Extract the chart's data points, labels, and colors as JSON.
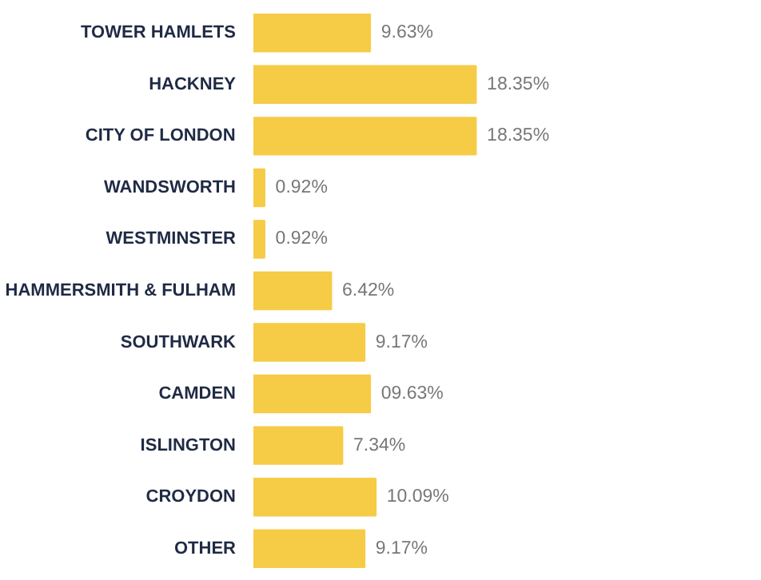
{
  "chart_data": {
    "type": "bar",
    "orientation": "horizontal",
    "categories": [
      "TOWER HAMLETS",
      "HACKNEY",
      "CITY OF LONDON",
      "WANDSWORTH",
      "WESTMINSTER",
      "HAMMERSMITH & FULHAM",
      "SOUTHWARK",
      "CAMDEN",
      "ISLINGTON",
      "CROYDON",
      "OTHER"
    ],
    "values": [
      9.63,
      18.35,
      18.35,
      0.92,
      0.92,
      6.42,
      9.17,
      9.63,
      7.34,
      10.09,
      9.17
    ],
    "value_labels": [
      "9.63%",
      "18.35%",
      "18.35%",
      "0.92%",
      "0.92%",
      "6.42%",
      "9.17%",
      "09.63%",
      "7.34%",
      "10.09%",
      "9.17%"
    ],
    "color": "#f6cb46"
  }
}
